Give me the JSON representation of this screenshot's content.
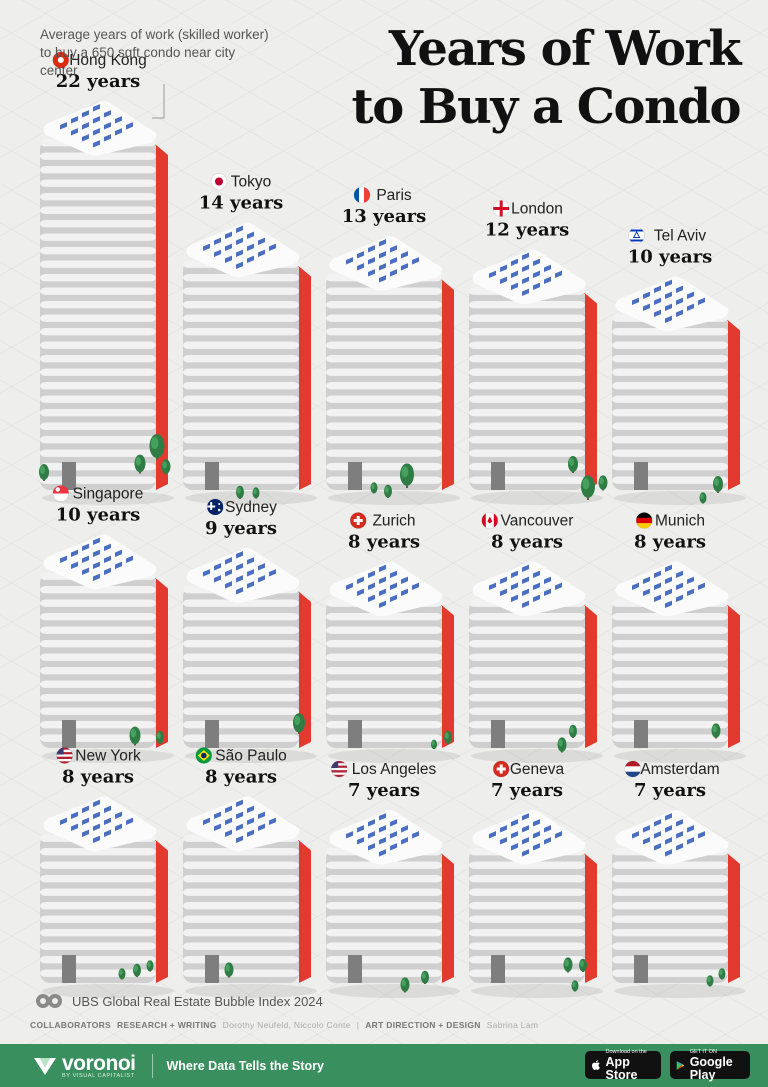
{
  "subtitle": "Average years of work (skilled worker) to buy a 650 sqft condo near city center",
  "title_lines": [
    "Years of Work",
    "to Buy a Condo"
  ],
  "colors": {
    "accent": "#e23a2f",
    "window": "#4a6fc0",
    "background": "#eeeeed",
    "footer": "#3a8f5e"
  },
  "chart_data": {
    "type": "bar",
    "ylabel": "Years of work",
    "unit": "years",
    "categories": [
      "Hong Kong",
      "Tokyo",
      "Paris",
      "London",
      "Tel Aviv",
      "Singapore",
      "Sydney",
      "Zurich",
      "Vancouver",
      "Munich",
      "New York",
      "São Paulo",
      "Los Angeles",
      "Geneva",
      "Amsterdam"
    ],
    "values": [
      22,
      14,
      13,
      12,
      10,
      10,
      9,
      8,
      8,
      8,
      8,
      8,
      7,
      7,
      7
    ],
    "value_labels": [
      "22 years",
      "14 years",
      "13 years",
      "12 years",
      "10 years",
      "10 years",
      "9 years",
      "8 years",
      "8 years",
      "8 years",
      "8 years",
      "8 years",
      "7 years",
      "7 years",
      "7 years"
    ],
    "flags": [
      "hong-kong-flag",
      "japan-flag",
      "france-flag",
      "england-flag",
      "israel-flag",
      "singapore-flag",
      "australia-flag",
      "switzerland-flag",
      "canada-flag",
      "germany-flag",
      "usa-flag",
      "brazil-flag",
      "usa-flag",
      "switzerland-flag",
      "netherlands-flag"
    ]
  },
  "source": "UBS Global Real Estate Bubble Index 2024",
  "credits": {
    "collaborators": "COLLABORATORS",
    "research_label": "RESEARCH + WRITING",
    "research_names": "Dorothy Neufeld, Niccolo Conte",
    "separator": "|",
    "design_label": "ART DIRECTION + DESIGN",
    "design_names": "Sabrina Lam"
  },
  "footer": {
    "brand": "voronoi",
    "brand_sub": "BY VISUAL CAPITALIST",
    "tagline": "Where Data Tells the Story",
    "app_store_small": "Download on the",
    "app_store_large": "App Store",
    "google_play_small": "GET IT ON",
    "google_play_large": "Google Play"
  }
}
